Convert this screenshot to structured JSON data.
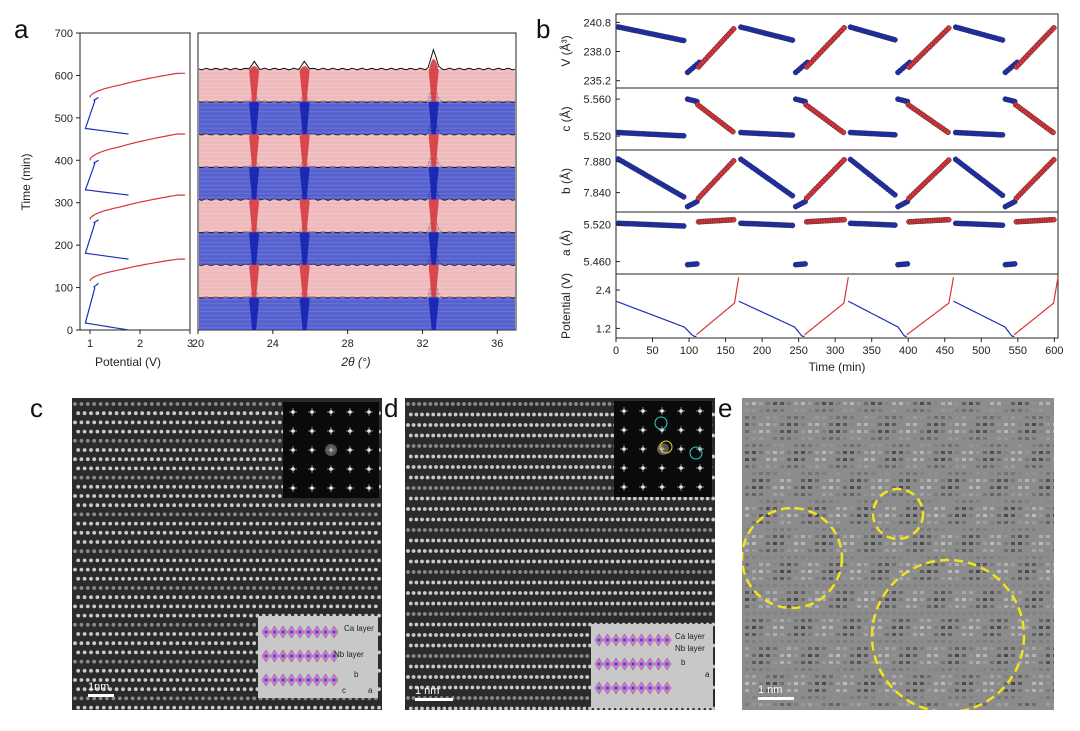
{
  "panels": {
    "a": {
      "label": "a"
    },
    "b": {
      "label": "b"
    },
    "c": {
      "label": "c"
    },
    "d": {
      "label": "d"
    },
    "e": {
      "label": "e"
    }
  },
  "colors": {
    "charge": "#d9343a",
    "discharge": "#1f2fb5",
    "trace": "#111111",
    "circle": "#f2e31a"
  },
  "chart_data": [
    {
      "id": "a-left",
      "type": "line",
      "xlabel": "Potential (V)",
      "ylabel": "Time (min)",
      "xlim": [
        0.8,
        3
      ],
      "ylim": [
        0,
        700
      ],
      "xticks": [
        "1",
        "2",
        "3"
      ],
      "yticks": [
        "0",
        "100",
        "200",
        "300",
        "400",
        "500",
        "600",
        "700"
      ]
    },
    {
      "id": "a-right",
      "type": "line",
      "xlabel": "2θ (°)",
      "xlim": [
        20,
        37
      ],
      "xticks": [
        "20",
        "24",
        "28",
        "32",
        "36"
      ],
      "peaks_2theta": [
        23.0,
        25.7,
        32.6
      ],
      "segments": [
        "discharge",
        "charge",
        "discharge",
        "charge",
        "discharge",
        "charge",
        "discharge",
        "charge"
      ]
    },
    {
      "id": "b-V",
      "type": "scatter",
      "ylabel": "V (Å³)",
      "yticks": [
        "240.8",
        "238.0",
        "235.2"
      ],
      "ylim": [
        234.5,
        241.6
      ]
    },
    {
      "id": "b-c",
      "type": "scatter",
      "ylabel": "c (Å)",
      "yticks": [
        "5.560",
        "5.520"
      ],
      "ylim": [
        5.505,
        5.572
      ]
    },
    {
      "id": "b-b",
      "type": "scatter",
      "ylabel": "b (Å)",
      "yticks": [
        "7.880",
        "7.840"
      ],
      "ylim": [
        7.815,
        7.895
      ]
    },
    {
      "id": "b-a",
      "type": "scatter",
      "ylabel": "a (Å)",
      "yticks": [
        "5.520",
        "5.460"
      ],
      "ylim": [
        5.44,
        5.54
      ]
    },
    {
      "id": "b-potential",
      "type": "line",
      "xlabel": "Time (min)",
      "ylabel": "Potential (V)",
      "xlim": [
        0,
        605
      ],
      "ylim": [
        0.9,
        2.9
      ],
      "xticks": [
        "0",
        "50",
        "100",
        "150",
        "200",
        "250",
        "300",
        "350",
        "400",
        "450",
        "500",
        "550",
        "600"
      ],
      "yticks": [
        "1.2",
        "2.4"
      ]
    }
  ],
  "images": {
    "c": {
      "scalebar": "1nm",
      "inset_labels": [
        "Ca layer",
        "Nb layer"
      ],
      "axes": [
        "b",
        "c",
        "a"
      ]
    },
    "d": {
      "scalebar": "1 nm",
      "inset_labels": [
        "Ca layer",
        "Nb layer"
      ],
      "axes": [
        "b",
        "a"
      ]
    },
    "e": {
      "scalebar": "1 nm"
    }
  }
}
